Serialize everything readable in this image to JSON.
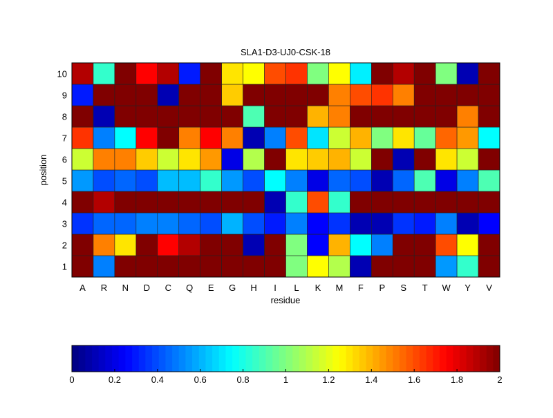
{
  "chart_data": {
    "type": "heatmap",
    "title": "SLA1-D3-UJ0-CSK-18",
    "xlabel": "residue",
    "ylabel": "position",
    "x_categories": [
      "A",
      "R",
      "N",
      "D",
      "C",
      "Q",
      "E",
      "G",
      "H",
      "I",
      "L",
      "K",
      "M",
      "F",
      "P",
      "S",
      "T",
      "W",
      "Y",
      "V"
    ],
    "y_categories": [
      "1",
      "2",
      "3",
      "4",
      "5",
      "6",
      "7",
      "8",
      "9",
      "10"
    ],
    "colormap": "jet",
    "clim": [
      0,
      2
    ],
    "colorbar_ticks": [
      "0",
      "0.2",
      "0.4",
      "0.6",
      "0.8",
      "1",
      "1.2",
      "1.4",
      "1.6",
      "1.8",
      "2"
    ],
    "colorbar_position": "bottom",
    "values": [
      [
        2,
        0.5,
        2,
        2,
        2,
        2,
        2,
        2,
        2,
        2,
        1.0,
        1.25,
        1.1,
        0.1,
        2,
        2,
        2,
        0.55,
        0.85,
        2
      ],
      [
        2,
        1.5,
        1.3,
        2,
        1.75,
        1.9,
        2,
        2,
        0.1,
        2,
        1.0,
        0.25,
        1.4,
        0.75,
        0.5,
        2,
        2,
        1.6,
        1.25,
        2
      ],
      [
        0.35,
        0.45,
        0.45,
        0.5,
        0.5,
        0.45,
        0.4,
        0.6,
        0.4,
        0.3,
        0.5,
        0.25,
        0.35,
        0.1,
        0.1,
        0.35,
        0.3,
        0.5,
        0.1,
        0.25
      ],
      [
        2,
        1.9,
        2,
        2,
        2,
        2,
        2,
        2,
        2,
        0.1,
        0.85,
        1.6,
        0.85,
        2,
        2,
        2,
        2,
        2,
        2,
        2
      ],
      [
        0.55,
        0.4,
        0.45,
        0.4,
        0.62,
        0.62,
        0.85,
        0.55,
        0.4,
        0.75,
        0.5,
        0.2,
        0.45,
        0.4,
        0.1,
        0.45,
        0.9,
        0.2,
        0.5,
        0.9
      ],
      [
        1.15,
        1.5,
        1.5,
        1.35,
        1.15,
        1.3,
        1.45,
        0.2,
        1.1,
        2,
        1.3,
        1.35,
        1.4,
        1.15,
        2,
        0.1,
        2,
        1.3,
        1.15,
        2
      ],
      [
        1.65,
        0.5,
        0.75,
        1.75,
        2,
        1.5,
        1.75,
        1.5,
        0.1,
        0.5,
        1.6,
        0.7,
        1.15,
        1.4,
        1.0,
        1.3,
        0.95,
        1.55,
        1.45,
        0.75
      ],
      [
        2,
        0.1,
        2,
        2,
        2,
        2,
        2,
        2,
        0.9,
        2,
        2,
        1.4,
        1.5,
        2,
        2,
        2,
        2,
        2,
        1.5,
        2
      ],
      [
        0.3,
        2,
        2,
        2,
        0.1,
        2,
        2,
        1.35,
        2,
        2,
        2,
        2,
        1.5,
        1.6,
        1.65,
        1.5,
        2,
        2,
        2,
        2
      ],
      [
        1.9,
        0.85,
        2,
        1.75,
        1.9,
        0.3,
        2,
        1.3,
        1.25,
        1.6,
        1.65,
        1.0,
        1.25,
        0.72,
        2,
        1.9,
        2,
        1.0,
        0.1,
        2
      ]
    ]
  }
}
